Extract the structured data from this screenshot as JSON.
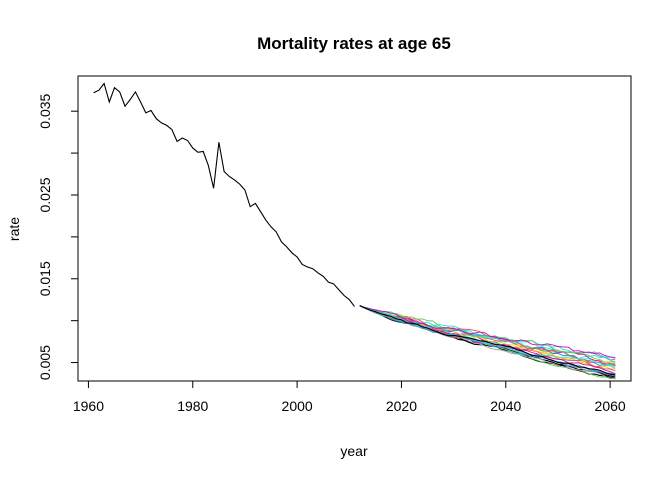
{
  "chart_data": {
    "type": "line",
    "title": "Mortality rates at age 65",
    "xlabel": "year",
    "ylabel": "rate",
    "xlim": [
      1958,
      2064
    ],
    "ylim": [
      0.0028,
      0.0392
    ],
    "x_ticks": [
      1960,
      1980,
      2000,
      2020,
      2040,
      2060
    ],
    "y_ticks": [
      0.005,
      0.015,
      0.025,
      0.035
    ],
    "x_tick_labels": [
      "1960",
      "1980",
      "2000",
      "2020",
      "2040",
      "2060"
    ],
    "y_tick_labels": [
      "0.005",
      "0.015",
      "0.025",
      "0.035"
    ],
    "grid": false,
    "historical": {
      "name": "",
      "color": "#000000",
      "points": [
        [
          1961,
          0.0372
        ],
        [
          1962,
          0.0375
        ],
        [
          1963,
          0.0383
        ],
        [
          1964,
          0.0361
        ],
        [
          1965,
          0.0378
        ],
        [
          1966,
          0.0373
        ],
        [
          1967,
          0.0356
        ],
        [
          1968,
          0.0364
        ],
        [
          1969,
          0.0373
        ],
        [
          1970,
          0.0361
        ],
        [
          1971,
          0.0348
        ],
        [
          1972,
          0.0351
        ],
        [
          1973,
          0.0341
        ],
        [
          1974,
          0.0336
        ],
        [
          1975,
          0.0333
        ],
        [
          1976,
          0.0328
        ],
        [
          1977,
          0.0314
        ],
        [
          1978,
          0.0318
        ],
        [
          1979,
          0.0315
        ],
        [
          1980,
          0.0306
        ],
        [
          1981,
          0.0301
        ],
        [
          1982,
          0.0302
        ],
        [
          1983,
          0.0285
        ],
        [
          1984,
          0.0258
        ],
        [
          1985,
          0.0313
        ],
        [
          1986,
          0.0278
        ],
        [
          1987,
          0.0272
        ],
        [
          1988,
          0.0268
        ],
        [
          1989,
          0.0263
        ],
        [
          1990,
          0.0256
        ],
        [
          1991,
          0.0236
        ],
        [
          1992,
          0.024
        ],
        [
          1993,
          0.023
        ],
        [
          1994,
          0.022
        ],
        [
          1995,
          0.0212
        ],
        [
          1996,
          0.0206
        ],
        [
          1997,
          0.0194
        ],
        [
          1998,
          0.0188
        ],
        [
          1999,
          0.0181
        ],
        [
          2000,
          0.0176
        ],
        [
          2001,
          0.0167
        ],
        [
          2002,
          0.0164
        ],
        [
          2003,
          0.0162
        ],
        [
          2004,
          0.0157
        ],
        [
          2005,
          0.0153
        ],
        [
          2006,
          0.0146
        ],
        [
          2007,
          0.0144
        ],
        [
          2008,
          0.0137
        ],
        [
          2009,
          0.013
        ],
        [
          2010,
          0.0125
        ],
        [
          2011,
          0.0117
        ]
      ]
    },
    "simulations": {
      "start_year": 2012,
      "end_year": 2061,
      "start_value": 0.0118,
      "series": [
        {
          "color": "#000000",
          "end_value": 0.0033,
          "wiggle": 0.0003
        },
        {
          "color": "#000000",
          "end_value": 0.003,
          "wiggle": 0.0003
        },
        {
          "color": "#DF536B",
          "end_value": 0.0054,
          "wiggle": 0.0005
        },
        {
          "color": "#61D04F",
          "end_value": 0.0044,
          "wiggle": 0.0005
        },
        {
          "color": "#2297E6",
          "end_value": 0.0037,
          "wiggle": 0.0004
        },
        {
          "color": "#28E2E5",
          "end_value": 0.005,
          "wiggle": 0.0006
        },
        {
          "color": "#CD0BBC",
          "end_value": 0.0048,
          "wiggle": 0.0005
        },
        {
          "color": "#F5C710",
          "end_value": 0.0042,
          "wiggle": 0.0004
        },
        {
          "color": "#9E9E9E",
          "end_value": 0.0035,
          "wiggle": 0.0003
        },
        {
          "color": "#DF536B",
          "end_value": 0.004,
          "wiggle": 0.0004
        },
        {
          "color": "#61D04F",
          "end_value": 0.0033,
          "wiggle": 0.0004
        },
        {
          "color": "#2297E6",
          "end_value": 0.0046,
          "wiggle": 0.0005
        },
        {
          "color": "#28E2E5",
          "end_value": 0.0057,
          "wiggle": 0.0006
        },
        {
          "color": "#CD0BBC",
          "end_value": 0.0038,
          "wiggle": 0.0004
        },
        {
          "color": "#F5C710",
          "end_value": 0.0047,
          "wiggle": 0.0005
        },
        {
          "color": "#9E9E9E",
          "end_value": 0.0031,
          "wiggle": 0.0003
        },
        {
          "color": "#DF536B",
          "end_value": 0.0049,
          "wiggle": 0.0005
        },
        {
          "color": "#61D04F",
          "end_value": 0.0052,
          "wiggle": 0.0005
        },
        {
          "color": "#2297E6",
          "end_value": 0.0034,
          "wiggle": 0.0003
        },
        {
          "color": "#28E2E5",
          "end_value": 0.0043,
          "wiggle": 0.0005
        },
        {
          "color": "#CD0BBC",
          "end_value": 0.0055,
          "wiggle": 0.0005
        },
        {
          "color": "#000000",
          "end_value": 0.0036,
          "wiggle": 0.0003
        }
      ]
    }
  }
}
